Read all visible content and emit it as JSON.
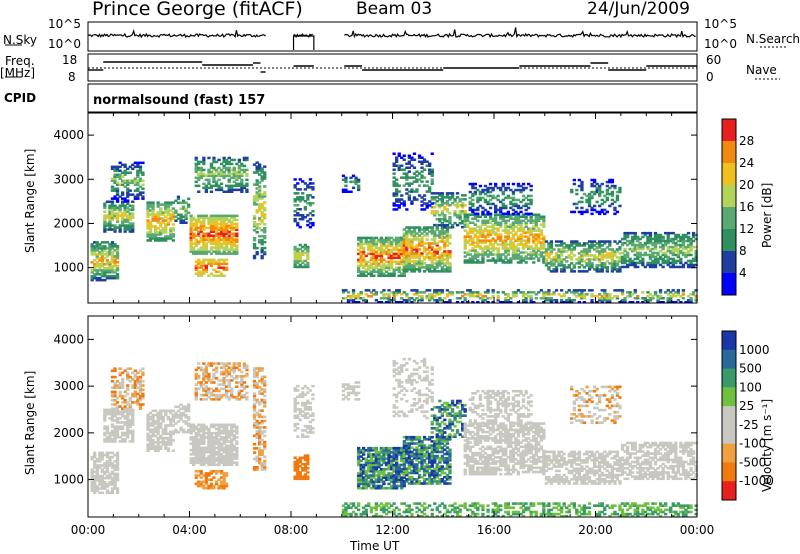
{
  "header": {
    "station": "Prince George (fitACF)",
    "beam": "Beam 03",
    "date": "24/Jun/2009"
  },
  "side_labels": {
    "nsky": "N.Sky",
    "nsearch": "N.Search",
    "freq_line1": "Freq.",
    "freq_line2": "[MHz]",
    "nave": "Nave",
    "cpid": "CPID",
    "nsky_ticks": [
      "10^5",
      "10^0"
    ],
    "nsearch_ticks": [
      "10^5",
      "10^0"
    ],
    "freq_ticks": [
      "18",
      "8"
    ],
    "nave_ticks": [
      "60",
      "0"
    ]
  },
  "cpid_text": "normalsound (fast) 157",
  "chart_data": [
    {
      "type": "heatmap",
      "panel": "power",
      "ylabel": "Slant Range [km]",
      "yticks": [
        1000,
        2000,
        3000,
        4000
      ],
      "ylim": [
        200,
        4500
      ],
      "xlim": [
        0,
        24
      ],
      "colorbar_label": "Power [dB]",
      "colorbar_ticks": [
        "4",
        "8",
        "12",
        "16",
        "20",
        "24",
        "28"
      ],
      "colors": [
        "#0000ff",
        "#1f3fa0",
        "#2f8f5f",
        "#5aa872",
        "#b4d35a",
        "#f0c020",
        "#f08a10",
        "#e82020"
      ]
    },
    {
      "type": "heatmap",
      "panel": "velocity",
      "ylabel": "Slant Range [km]",
      "yticks": [
        1000,
        2000,
        3000,
        4000
      ],
      "ylim": [
        200,
        4500
      ],
      "xlim": [
        0,
        24
      ],
      "xlabel": "Time UT",
      "xticks": [
        "00:00",
        "04:00",
        "08:00",
        "12:00",
        "16:00",
        "20:00",
        "00:00"
      ],
      "colorbar_label": "Velocity [m s⁻¹]",
      "colorbar_ticks": [
        "1000",
        "500",
        "100",
        "25",
        "-25",
        "-100",
        "-500",
        "-1000"
      ],
      "colors": [
        "#1838a8",
        "#2a6a9a",
        "#3a9a6a",
        "#70c040",
        "#c8c8c0",
        "#c8c8c0",
        "#f0a040",
        "#f07a10",
        "#e82020"
      ]
    }
  ]
}
